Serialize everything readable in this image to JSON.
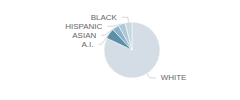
{
  "chart_data": {
    "type": "pie",
    "categories": [
      "WHITE",
      "A.I.",
      "ASIAN",
      "HISPANIC",
      "BLACK"
    ],
    "values": [
      82,
      6,
      4,
      4,
      4
    ],
    "colors": [
      "#d4dde6",
      "#5b8fa8",
      "#8cb4c8",
      "#aec9d6",
      "#c6dae3"
    ]
  }
}
